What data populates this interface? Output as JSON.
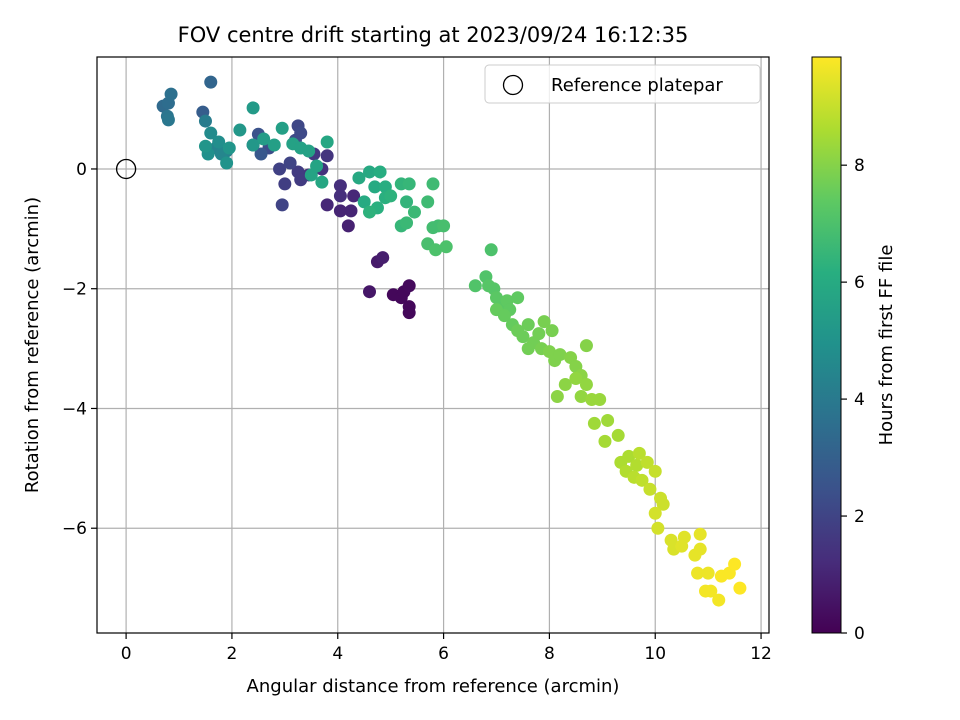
{
  "chart_data": {
    "type": "scatter",
    "title": "FOV centre drift starting at 2023/09/24 16:12:35",
    "xlabel": "Angular distance from reference (arcmin)",
    "ylabel": "Rotation from reference (arcmin)",
    "xlim": [
      -0.55,
      12.15
    ],
    "ylim": [
      -7.75,
      1.87
    ],
    "xticks": [
      0,
      2,
      4,
      6,
      8,
      10,
      12
    ],
    "yticks": [
      -6,
      -4,
      -2,
      0
    ],
    "xtick_labels": [
      "0",
      "2",
      "4",
      "6",
      "8",
      "10",
      "12"
    ],
    "ytick_labels": [
      "−6",
      "−4",
      "−2",
      "0"
    ],
    "grid": true,
    "legend": {
      "position": "top-right",
      "entries": [
        "Reference platepar"
      ]
    },
    "colorbar": {
      "label": "Hours from first FF file",
      "colormap": "viridis",
      "range": [
        0,
        9.85
      ],
      "ticks": [
        0,
        2,
        4,
        6,
        8
      ],
      "tick_labels": [
        "0",
        "2",
        "4",
        "6",
        "8"
      ]
    },
    "reference_point": {
      "x": 0,
      "y": 0,
      "name": "Reference platepar"
    },
    "series": [
      {
        "points": [
          [
            5.05,
            -2.1,
            0.2
          ],
          [
            5.2,
            -2.15,
            0.2
          ],
          [
            5.35,
            -2.3,
            0.2
          ],
          [
            5.35,
            -2.4,
            0.2
          ],
          [
            5.25,
            -2.05,
            0.2
          ],
          [
            5.35,
            -1.95,
            0.25
          ],
          [
            4.6,
            -2.05,
            0.6
          ],
          [
            4.75,
            -1.55,
            0.7
          ],
          [
            4.85,
            -1.48,
            0.8
          ],
          [
            4.2,
            -0.95,
            0.9
          ],
          [
            4.25,
            -0.7,
            1.0
          ],
          [
            4.05,
            -0.7,
            1.0
          ],
          [
            4.3,
            -0.45,
            1.1
          ],
          [
            3.8,
            -0.6,
            1.1
          ],
          [
            4.05,
            -0.28,
            1.3
          ],
          [
            4.05,
            -0.45,
            1.3
          ],
          [
            3.45,
            -0.1,
            1.4
          ],
          [
            3.7,
            0.0,
            1.4
          ],
          [
            3.8,
            0.22,
            1.5
          ],
          [
            3.55,
            0.25,
            1.6
          ],
          [
            3.25,
            -0.05,
            1.7
          ],
          [
            3.3,
            -0.18,
            1.7
          ],
          [
            3.0,
            -0.25,
            1.8
          ],
          [
            2.9,
            0.0,
            1.9
          ],
          [
            3.1,
            0.1,
            2.0
          ],
          [
            2.95,
            -0.6,
            2.0
          ],
          [
            3.25,
            0.72,
            2.1
          ],
          [
            3.2,
            0.48,
            2.2
          ],
          [
            3.3,
            0.6,
            2.2
          ],
          [
            2.7,
            0.35,
            2.3
          ],
          [
            2.5,
            0.58,
            2.5
          ],
          [
            2.4,
            0.4,
            2.6
          ],
          [
            2.55,
            0.25,
            2.7
          ],
          [
            1.45,
            0.95,
            2.9
          ],
          [
            1.6,
            1.45,
            3.2
          ],
          [
            0.7,
            1.05,
            3.4
          ],
          [
            0.8,
            1.1,
            3.5
          ],
          [
            0.85,
            1.25,
            3.6
          ],
          [
            0.78,
            0.88,
            3.8
          ],
          [
            0.8,
            0.82,
            3.9
          ],
          [
            1.5,
            0.8,
            4.1
          ],
          [
            1.9,
            0.3,
            4.3
          ],
          [
            1.7,
            0.35,
            4.4
          ],
          [
            1.8,
            0.25,
            4.5
          ],
          [
            1.6,
            0.6,
            4.7
          ],
          [
            1.75,
            0.45,
            4.8
          ],
          [
            1.55,
            0.25,
            4.9
          ],
          [
            1.9,
            0.1,
            5.0
          ],
          [
            1.95,
            0.35,
            5.1
          ],
          [
            1.5,
            0.38,
            5.1
          ],
          [
            2.15,
            0.65,
            5.2
          ],
          [
            2.4,
            0.4,
            5.2
          ],
          [
            2.4,
            1.02,
            5.3
          ],
          [
            2.6,
            0.5,
            5.4
          ],
          [
            2.8,
            0.4,
            5.5
          ],
          [
            2.95,
            0.68,
            5.5
          ],
          [
            3.15,
            0.42,
            5.6
          ],
          [
            3.3,
            0.35,
            5.6
          ],
          [
            3.45,
            0.3,
            5.6
          ],
          [
            3.5,
            -0.1,
            5.7
          ],
          [
            3.6,
            0.05,
            5.7
          ],
          [
            3.7,
            -0.22,
            5.8
          ],
          [
            3.8,
            0.45,
            5.8
          ],
          [
            4.4,
            -0.15,
            5.9
          ],
          [
            4.6,
            -0.05,
            5.9
          ],
          [
            4.5,
            -0.55,
            6.0
          ],
          [
            4.7,
            -0.3,
            6.0
          ],
          [
            4.8,
            -0.05,
            6.1
          ],
          [
            4.9,
            -0.3,
            6.1
          ],
          [
            4.9,
            -0.48,
            6.2
          ],
          [
            4.75,
            -0.65,
            6.2
          ],
          [
            4.6,
            -0.72,
            6.3
          ],
          [
            5.0,
            -0.45,
            6.3
          ],
          [
            5.2,
            -0.25,
            6.4
          ],
          [
            5.3,
            -0.55,
            6.4
          ],
          [
            5.35,
            -0.25,
            6.5
          ],
          [
            5.2,
            -0.95,
            6.5
          ],
          [
            5.3,
            -0.9,
            6.6
          ],
          [
            5.45,
            -0.72,
            6.6
          ],
          [
            5.7,
            -0.55,
            6.7
          ],
          [
            5.8,
            -0.25,
            6.7
          ],
          [
            5.8,
            -0.98,
            6.8
          ],
          [
            5.9,
            -0.95,
            6.8
          ],
          [
            6.0,
            -0.95,
            6.9
          ],
          [
            5.7,
            -1.25,
            6.9
          ],
          [
            5.85,
            -1.35,
            7.0
          ],
          [
            6.05,
            -1.3,
            7.0
          ],
          [
            6.9,
            -1.35,
            7.0
          ],
          [
            6.6,
            -1.95,
            7.1
          ],
          [
            6.8,
            -1.8,
            7.1
          ],
          [
            6.85,
            -1.95,
            7.2
          ],
          [
            6.95,
            -2.0,
            7.2
          ],
          [
            7.0,
            -2.15,
            7.3
          ],
          [
            7.1,
            -2.25,
            7.3
          ],
          [
            7.2,
            -2.2,
            7.4
          ],
          [
            7.25,
            -2.35,
            7.4
          ],
          [
            7.4,
            -2.15,
            7.4
          ],
          [
            7.0,
            -2.35,
            7.5
          ],
          [
            7.15,
            -2.45,
            7.5
          ],
          [
            7.3,
            -2.6,
            7.5
          ],
          [
            7.4,
            -2.7,
            7.6
          ],
          [
            7.6,
            -2.6,
            7.6
          ],
          [
            7.5,
            -2.8,
            7.6
          ],
          [
            7.7,
            -2.9,
            7.7
          ],
          [
            7.6,
            -3.0,
            7.7
          ],
          [
            7.8,
            -2.75,
            7.7
          ],
          [
            7.9,
            -2.55,
            7.8
          ],
          [
            8.05,
            -2.7,
            7.8
          ],
          [
            7.85,
            -3.0,
            7.8
          ],
          [
            8.0,
            -3.05,
            7.9
          ],
          [
            8.1,
            -3.2,
            7.9
          ],
          [
            8.2,
            -3.1,
            7.9
          ],
          [
            8.4,
            -3.15,
            8.0
          ],
          [
            8.7,
            -2.95,
            8.0
          ],
          [
            8.5,
            -3.3,
            8.0
          ],
          [
            8.6,
            -3.45,
            8.1
          ],
          [
            8.3,
            -3.6,
            8.1
          ],
          [
            8.15,
            -3.8,
            8.1
          ],
          [
            8.5,
            -3.5,
            8.2
          ],
          [
            8.6,
            -3.8,
            8.2
          ],
          [
            8.7,
            -3.6,
            8.2
          ],
          [
            8.8,
            -3.85,
            8.3
          ],
          [
            8.95,
            -3.85,
            8.3
          ],
          [
            8.85,
            -4.25,
            8.4
          ],
          [
            9.1,
            -4.2,
            8.4
          ],
          [
            9.05,
            -4.55,
            8.5
          ],
          [
            9.3,
            -4.45,
            8.5
          ],
          [
            9.35,
            -4.9,
            8.6
          ],
          [
            9.5,
            -4.8,
            8.6
          ],
          [
            9.45,
            -5.05,
            8.7
          ],
          [
            9.65,
            -4.95,
            8.7
          ],
          [
            9.7,
            -4.75,
            8.8
          ],
          [
            9.6,
            -5.15,
            8.8
          ],
          [
            9.75,
            -5.2,
            8.9
          ],
          [
            9.85,
            -4.9,
            8.9
          ],
          [
            9.9,
            -5.35,
            9.0
          ],
          [
            10.0,
            -5.05,
            9.0
          ],
          [
            10.1,
            -5.5,
            9.1
          ],
          [
            10.15,
            -5.6,
            9.1
          ],
          [
            10.0,
            -5.75,
            9.2
          ],
          [
            10.05,
            -6.0,
            9.2
          ],
          [
            10.3,
            -6.2,
            9.3
          ],
          [
            10.35,
            -6.35,
            9.3
          ],
          [
            10.5,
            -6.3,
            9.4
          ],
          [
            10.55,
            -6.15,
            9.4
          ],
          [
            10.75,
            -6.45,
            9.5
          ],
          [
            10.85,
            -6.1,
            9.5
          ],
          [
            10.85,
            -6.35,
            9.5
          ],
          [
            10.8,
            -6.75,
            9.6
          ],
          [
            11.0,
            -6.75,
            9.6
          ],
          [
            10.95,
            -7.05,
            9.7
          ],
          [
            11.05,
            -7.05,
            9.7
          ],
          [
            11.2,
            -7.2,
            9.7
          ],
          [
            11.25,
            -6.8,
            9.8
          ],
          [
            11.4,
            -6.75,
            9.8
          ],
          [
            11.5,
            -6.6,
            9.85
          ],
          [
            11.6,
            -7.0,
            9.85
          ]
        ]
      }
    ]
  }
}
